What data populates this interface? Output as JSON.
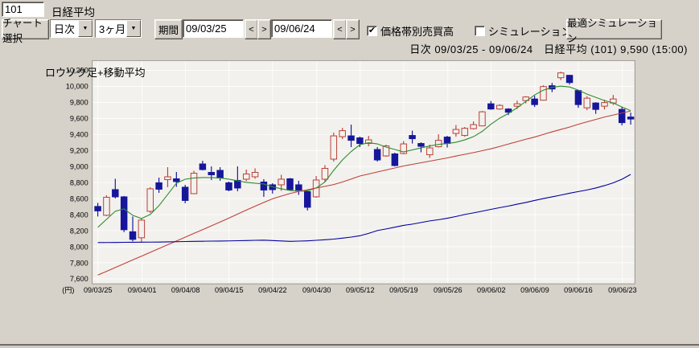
{
  "header": {
    "code_value": "101",
    "name_label": "日経平均"
  },
  "toolbar": {
    "chart_select_button": "チャート選択",
    "frequency_selected": "日次",
    "range_selected": "3ヶ月",
    "dropdown_arrow_glyph": "▼",
    "period_label": "期間",
    "date_from": "09/03/25",
    "date_to": "09/06/24",
    "prev_glyph": "<",
    "next_glyph": ">",
    "volume_by_price_label": "価格帯別売買高",
    "volume_by_price_checked": true,
    "simulation_label": "シミュレーション",
    "simulation_checked": false,
    "check_glyph": "✔",
    "optimal_simulation_button": "最適シミュレーション"
  },
  "status_bar": {
    "text": "日次 09/03/25 - 09/06/24　日経平均 (101)  9,590 (15:00)"
  },
  "chart_data": {
    "type": "candlestick",
    "title": "ロウソク足+移動平均",
    "y_unit_label": "(円)",
    "ylim": [
      7533,
      10300
    ],
    "grid": true,
    "colors": {
      "up": "#bb4038",
      "down": "#16169b",
      "up_fill": "#f2f1ed",
      "plot_bg": "#f2f1ed",
      "grid": "#ffffff",
      "frame": "#8f8b84",
      "ma_short": "#2e8b2e",
      "ma_mid": "#bf4038",
      "ma_long": "#0000a0"
    },
    "y_ticks": [
      {
        "value": 10200,
        "label": "10,200"
      },
      {
        "value": 10000,
        "label": "10,000"
      },
      {
        "value": 9800,
        "label": "9,800"
      },
      {
        "value": 9600,
        "label": "9,600"
      },
      {
        "value": 9400,
        "label": "9,400"
      },
      {
        "value": 9200,
        "label": "9,200"
      },
      {
        "value": 9000,
        "label": "9,000"
      },
      {
        "value": 8800,
        "label": "8,800"
      },
      {
        "value": 8600,
        "label": "8,600"
      },
      {
        "value": 8400,
        "label": "8,400"
      },
      {
        "value": 8200,
        "label": "8,200"
      },
      {
        "value": 8000,
        "label": "8,000"
      },
      {
        "value": 7800,
        "label": "7,800"
      },
      {
        "value": 7600,
        "label": "7,600"
      }
    ],
    "x_ticks": [
      {
        "day": 0,
        "label": "09/03/25"
      },
      {
        "day": 5,
        "label": "09/04/01"
      },
      {
        "day": 10,
        "label": "09/04/08"
      },
      {
        "day": 15,
        "label": "09/04/15"
      },
      {
        "day": 20,
        "label": "09/04/22"
      },
      {
        "day": 25,
        "label": "09/04/30"
      },
      {
        "day": 30,
        "label": "09/05/12"
      },
      {
        "day": 35,
        "label": "09/05/19"
      },
      {
        "day": 40,
        "label": "09/05/26"
      },
      {
        "day": 45,
        "label": "09/06/02"
      },
      {
        "day": 50,
        "label": "09/06/09"
      },
      {
        "day": 55,
        "label": "09/06/16"
      },
      {
        "day": 60,
        "label": "09/06/23"
      }
    ],
    "dates": [
      "09/03/25",
      "09/03/26",
      "09/03/27",
      "09/03/30",
      "09/03/31",
      "09/04/01",
      "09/04/02",
      "09/04/03",
      "09/04/06",
      "09/04/07",
      "09/04/08",
      "09/04/09",
      "09/04/10",
      "09/04/13",
      "09/04/14",
      "09/04/15",
      "09/04/16",
      "09/04/17",
      "09/04/20",
      "09/04/21",
      "09/04/22",
      "09/04/23",
      "09/04/24",
      "09/04/27",
      "09/04/28",
      "09/04/30",
      "09/05/01",
      "09/05/07",
      "09/05/08",
      "09/05/11",
      "09/05/12",
      "09/05/13",
      "09/05/14",
      "09/05/15",
      "09/05/18",
      "09/05/19",
      "09/05/20",
      "09/05/21",
      "09/05/22",
      "09/05/25",
      "09/05/26",
      "09/05/27",
      "09/05/28",
      "09/05/29",
      "09/06/01",
      "09/06/02",
      "09/06/03",
      "09/06/04",
      "09/06/05",
      "09/06/08",
      "09/06/09",
      "09/06/10",
      "09/06/11",
      "09/06/12",
      "09/06/15",
      "09/06/16",
      "09/06/17",
      "09/06/18",
      "09/06/19",
      "09/06/22",
      "09/06/23",
      "09/06/24"
    ],
    "candles_ohlc": [
      [
        8500,
        8545,
        8375,
        8445
      ],
      [
        8390,
        8640,
        8380,
        8615
      ],
      [
        8710,
        8845,
        8600,
        8620
      ],
      [
        8620,
        8630,
        8180,
        8210
      ],
      [
        8185,
        8375,
        8065,
        8090
      ],
      [
        8110,
        8350,
        8060,
        8330
      ],
      [
        8440,
        8740,
        8420,
        8720
      ],
      [
        8795,
        8860,
        8670,
        8715
      ],
      [
        8835,
        8990,
        8740,
        8870
      ],
      [
        8845,
        8930,
        8745,
        8810
      ],
      [
        8740,
        8770,
        8540,
        8575
      ],
      [
        8660,
        8945,
        8655,
        8915
      ],
      [
        9030,
        9070,
        8950,
        8960
      ],
      [
        8925,
        9000,
        8830,
        8895
      ],
      [
        8950,
        8990,
        8820,
        8855
      ],
      [
        8795,
        8810,
        8690,
        8705
      ],
      [
        8825,
        9000,
        8690,
        8730
      ],
      [
        8840,
        8960,
        8815,
        8905
      ],
      [
        8870,
        8975,
        8845,
        8925
      ],
      [
        8805,
        8840,
        8620,
        8705
      ],
      [
        8770,
        8790,
        8660,
        8710
      ],
      [
        8770,
        8895,
        8695,
        8840
      ],
      [
        8845,
        8855,
        8700,
        8710
      ],
      [
        8770,
        8820,
        8645,
        8705
      ],
      [
        8685,
        8700,
        8450,
        8490
      ],
      [
        8620,
        8880,
        8610,
        8830
      ],
      [
        8840,
        9015,
        8810,
        8975
      ],
      [
        9090,
        9420,
        9060,
        9380
      ],
      [
        9370,
        9480,
        9340,
        9445
      ],
      [
        9380,
        9520,
        9240,
        9325
      ],
      [
        9355,
        9370,
        9240,
        9285
      ],
      [
        9285,
        9380,
        9250,
        9330
      ],
      [
        9210,
        9240,
        9060,
        9080
      ],
      [
        9130,
        9270,
        9120,
        9255
      ],
      [
        9155,
        9170,
        9000,
        9010
      ],
      [
        9160,
        9315,
        9150,
        9280
      ],
      [
        9385,
        9445,
        9285,
        9345
      ],
      [
        9285,
        9300,
        9175,
        9250
      ],
      [
        9145,
        9270,
        9105,
        9230
      ],
      [
        9245,
        9400,
        9235,
        9325
      ],
      [
        9365,
        9380,
        9235,
        9285
      ],
      [
        9410,
        9515,
        9370,
        9460
      ],
      [
        9385,
        9490,
        9370,
        9475
      ],
      [
        9470,
        9560,
        9460,
        9520
      ],
      [
        9505,
        9690,
        9500,
        9680
      ],
      [
        9780,
        9815,
        9705,
        9715
      ],
      [
        9715,
        9775,
        9705,
        9760
      ],
      [
        9715,
        9725,
        9640,
        9675
      ],
      [
        9750,
        9820,
        9715,
        9780
      ],
      [
        9820,
        9875,
        9785,
        9865
      ],
      [
        9840,
        9880,
        9740,
        9770
      ],
      [
        9825,
        10010,
        9820,
        9995
      ],
      [
        10005,
        10040,
        9925,
        9965
      ],
      [
        10105,
        10180,
        10075,
        10165
      ],
      [
        10135,
        10140,
        10020,
        10045
      ],
      [
        9945,
        9955,
        9730,
        9770
      ],
      [
        9730,
        9875,
        9700,
        9850
      ],
      [
        9790,
        9800,
        9655,
        9710
      ],
      [
        9750,
        9830,
        9710,
        9795
      ],
      [
        9790,
        9890,
        9765,
        9840
      ],
      [
        9710,
        9740,
        9510,
        9545
      ],
      [
        9615,
        9670,
        9520,
        9590
      ]
    ],
    "series": [
      {
        "name": "moving-average-short",
        "color": "#2e8b2e",
        "values": [
          8240,
          8340,
          8440,
          8470,
          8390,
          8350,
          8400,
          8510,
          8650,
          8790,
          8840,
          8855,
          8860,
          8860,
          8855,
          8840,
          8820,
          8800,
          8790,
          8780,
          8745,
          8720,
          8700,
          8690,
          8695,
          8730,
          8805,
          8950,
          9080,
          9185,
          9270,
          9295,
          9280,
          9240,
          9210,
          9180,
          9205,
          9230,
          9255,
          9273,
          9285,
          9300,
          9330,
          9370,
          9436,
          9525,
          9600,
          9660,
          9730,
          9810,
          9890,
          9950,
          9985,
          10000,
          9990,
          9950,
          9900,
          9860,
          9820,
          9790,
          9740,
          9695
        ]
      },
      {
        "name": "moving-average-mid",
        "color": "#bf4038",
        "values": [
          7645,
          7692,
          7739,
          7787,
          7834,
          7881,
          7928,
          7975,
          8023,
          8070,
          8117,
          8164,
          8211,
          8258,
          8306,
          8355,
          8405,
          8455,
          8503,
          8551,
          8596,
          8629,
          8662,
          8687,
          8708,
          8730,
          8751,
          8773,
          8804,
          8842,
          8880,
          8905,
          8930,
          8955,
          8980,
          9005,
          9025,
          9045,
          9065,
          9085,
          9105,
          9128,
          9150,
          9172,
          9195,
          9218,
          9248,
          9278,
          9308,
          9338,
          9365,
          9398,
          9430,
          9460,
          9490,
          9525,
          9555,
          9585,
          9615,
          9640,
          9665,
          9690
        ]
      },
      {
        "name": "moving-average-long",
        "color": "#0000a0",
        "values": [
          8050,
          8051,
          8052,
          8053,
          8054,
          8055,
          8056,
          8057,
          8059,
          8061,
          8063,
          8065,
          8067,
          8068,
          8069,
          8071,
          8073,
          8075,
          8078,
          8080,
          8075,
          8070,
          8065,
          8068,
          8072,
          8078,
          8085,
          8093,
          8105,
          8118,
          8135,
          8165,
          8200,
          8220,
          8242,
          8264,
          8280,
          8300,
          8320,
          8335,
          8353,
          8375,
          8400,
          8420,
          8442,
          8464,
          8485,
          8505,
          8528,
          8550,
          8575,
          8598,
          8620,
          8642,
          8665,
          8686,
          8706,
          8730,
          8760,
          8795,
          8840,
          8900
        ]
      }
    ]
  }
}
